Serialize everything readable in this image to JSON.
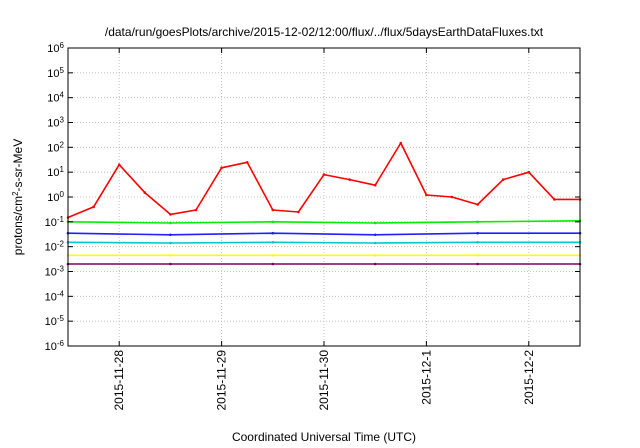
{
  "chart_data": {
    "type": "line",
    "title": "/data/run/goesPlots/archive/2015-12-02/12:00/flux/../flux/5daysEarthDataFluxes.txt",
    "xlabel": "Coordinated Universal Time (UTC)",
    "ylabel": {
      "main": "protons/cm",
      "sup": "2",
      "rest": "-s-sr-MeV"
    },
    "yscale": "log",
    "ylim_exp": [
      -6,
      6
    ],
    "y_ticks": [
      {
        "base": "10",
        "exp": "-6"
      },
      {
        "base": "10",
        "exp": "-5"
      },
      {
        "base": "10",
        "exp": "-4"
      },
      {
        "base": "10",
        "exp": "-3"
      },
      {
        "base": "10",
        "exp": "-2"
      },
      {
        "base": "10",
        "exp": "-1"
      },
      {
        "base": "10",
        "exp": "0"
      },
      {
        "base": "10",
        "exp": "1"
      },
      {
        "base": "10",
        "exp": "2"
      },
      {
        "base": "10",
        "exp": "3"
      },
      {
        "base": "10",
        "exp": "4"
      },
      {
        "base": "10",
        "exp": "5"
      },
      {
        "base": "10",
        "exp": "6"
      }
    ],
    "xlim": [
      "2015-11-27 12:00",
      "2015-12-02 12:00"
    ],
    "x_ticks": [
      "2015-11-28",
      "2015-11-29",
      "2015-11-30",
      "2015-12-1",
      "2015-12-2"
    ],
    "grid": true,
    "series": [
      {
        "color": "#ff0000",
        "x": [
          "2015-11-27 12:00",
          "2015-11-27 18:00",
          "2015-11-28 00:00",
          "2015-11-28 06:00",
          "2015-11-28 12:00",
          "2015-11-28 18:00",
          "2015-11-29 00:00",
          "2015-11-29 06:00",
          "2015-11-29 12:00",
          "2015-11-29 18:00",
          "2015-11-30 00:00",
          "2015-11-30 06:00",
          "2015-11-30 12:00",
          "2015-11-30 18:00",
          "2015-12-01 00:00",
          "2015-12-01 06:00",
          "2015-12-01 12:00",
          "2015-12-01 18:00",
          "2015-12-02 00:00",
          "2015-12-02 06:00",
          "2015-12-02 12:00"
        ],
        "y": [
          0.15,
          0.4,
          20,
          1.5,
          0.2,
          0.3,
          15,
          25,
          0.3,
          0.25,
          8,
          5,
          3,
          150,
          1.2,
          1,
          0.5,
          5,
          10,
          0.8,
          0.8
        ]
      },
      {
        "color": "#00ee00",
        "x": [
          "2015-11-27 12:00",
          "2015-11-28 12:00",
          "2015-11-29 12:00",
          "2015-11-30 12:00",
          "2015-12-01 12:00",
          "2015-12-02 12:00"
        ],
        "y": [
          0.1,
          0.09,
          0.1,
          0.09,
          0.1,
          0.11
        ]
      },
      {
        "color": "#2020ff",
        "x": [
          "2015-11-27 12:00",
          "2015-11-28 12:00",
          "2015-11-29 12:00",
          "2015-11-30 12:00",
          "2015-12-01 12:00",
          "2015-12-02 12:00"
        ],
        "y": [
          0.035,
          0.03,
          0.035,
          0.03,
          0.035,
          0.035
        ]
      },
      {
        "color": "#00c8c8",
        "x": [
          "2015-11-27 12:00",
          "2015-11-28 12:00",
          "2015-11-29 12:00",
          "2015-11-30 12:00",
          "2015-12-01 12:00",
          "2015-12-02 12:00"
        ],
        "y": [
          0.015,
          0.014,
          0.015,
          0.014,
          0.015,
          0.015
        ]
      },
      {
        "color": "#ffff00",
        "x": [
          "2015-11-27 12:00",
          "2015-11-28 12:00",
          "2015-11-29 12:00",
          "2015-11-30 12:00",
          "2015-12-01 12:00",
          "2015-12-02 12:00"
        ],
        "y": [
          0.0045,
          0.0045,
          0.0045,
          0.0045,
          0.0045,
          0.0045
        ]
      },
      {
        "color": "#800060",
        "x": [
          "2015-11-27 12:00",
          "2015-11-28 12:00",
          "2015-11-29 12:00",
          "2015-11-30 12:00",
          "2015-12-01 12:00",
          "2015-12-02 12:00"
        ],
        "y": [
          0.002,
          0.002,
          0.002,
          0.002,
          0.002,
          0.002
        ]
      }
    ]
  }
}
